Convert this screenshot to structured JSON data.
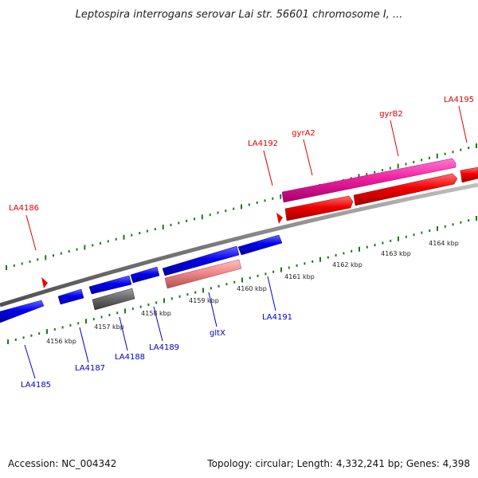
{
  "title": "Leptospira interrogans serovar Lai str. 56601 chromosome I, ...",
  "accession_label": "Accession: NC_004342",
  "summary_label": "Topology: circular; Length: 4,332,241 bp; Genes: 4,398",
  "colors": {
    "forward_label": "#dd0000",
    "reverse_label": "#0000cc",
    "tick": "#1a7a1a",
    "backbone": "#808080"
  },
  "kbp_labels": [
    "4156 kbp",
    "4157 kbp",
    "4158 kbp",
    "4159 kbp",
    "4160 kbp",
    "4161 kbp",
    "4162 kbp",
    "4163 kbp",
    "4164 kbp"
  ],
  "forward_gene_labels": [
    "LA4186",
    "LA4192",
    "gyrA2",
    "gyrB2",
    "LA4195"
  ],
  "reverse_gene_labels": [
    "LA4185",
    "LA4187",
    "LA4188",
    "LA4189",
    "gltX",
    "LA4191"
  ]
}
